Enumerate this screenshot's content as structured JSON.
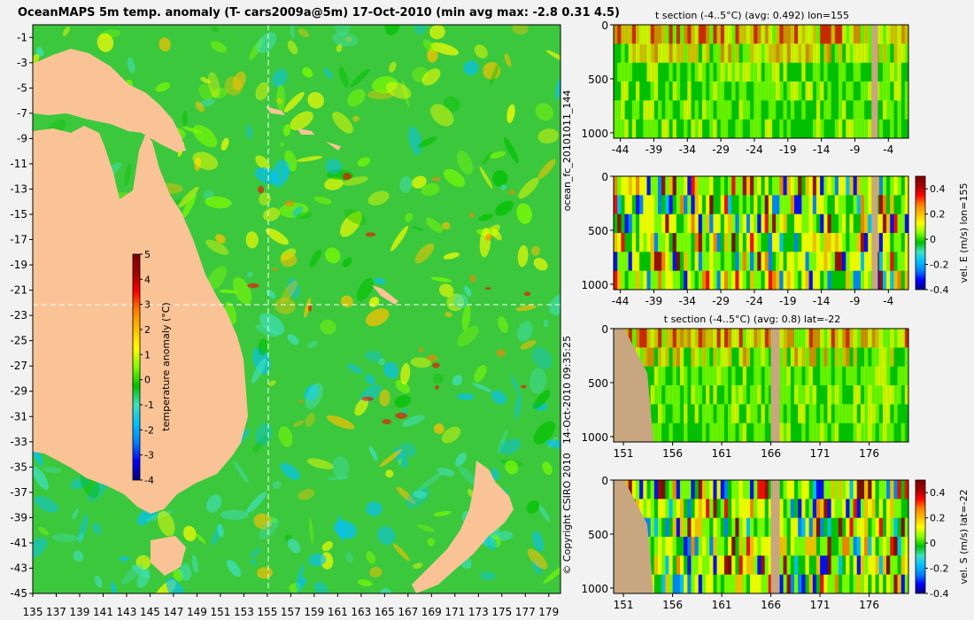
{
  "title": "OceanMAPS 5m temp. anomaly (T- cars2009a@5m) 17-Oct-2010 (min avg max: -2.8 0.31 4.5)",
  "side_text": {
    "forecast_id": "ocean_fc_20101011_144",
    "issued": "14-Oct-2010 09:35:25",
    "copyright": "© Copyright CSIRO 2010"
  },
  "colors": {
    "background": "#f2f2f2",
    "land": "#f9c396",
    "section_land": "#c7a680",
    "guide_line": "#ffffff",
    "colormap": [
      "#000080",
      "#0000ff",
      "#0080ff",
      "#00c0ff",
      "#40e0c0",
      "#00c000",
      "#80ff00",
      "#ffff00",
      "#ffc000",
      "#ff8000",
      "#ff0000",
      "#a00000",
      "#800000"
    ]
  },
  "chart_data": [
    {
      "type": "heatmap",
      "name": "map",
      "title": "OceanMAPS 5m temp. anomaly (T- cars2009a@5m) 17-Oct-2010 (min avg max: -2.8 0.31 4.5)",
      "x_ticks": [
        "135",
        "137",
        "139",
        "141",
        "143",
        "145",
        "147",
        "149",
        "151",
        "153",
        "155",
        "157",
        "159",
        "161",
        "163",
        "165",
        "167",
        "169",
        "171",
        "173",
        "175",
        "177",
        "179"
      ],
      "y_ticks": [
        "-1",
        "-3",
        "-5",
        "-7",
        "-9",
        "-11",
        "-13",
        "-15",
        "-17",
        "-19",
        "-21",
        "-23",
        "-25",
        "-27",
        "-29",
        "-31",
        "-33",
        "-35",
        "-37",
        "-39",
        "-41",
        "-43",
        "-45"
      ],
      "xlim": [
        135,
        180
      ],
      "ylim": [
        -45,
        0
      ],
      "grid": false,
      "colorbar": {
        "label": "temperature anomaly (°C)",
        "ticks": [
          "5",
          "4",
          "3",
          "2",
          "1",
          "0",
          "-1",
          "-2",
          "-3",
          "-4"
        ],
        "range": [
          -4,
          5
        ]
      },
      "guide_lines": {
        "lon": 155,
        "lat": -22
      },
      "stats": {
        "min": -2.8,
        "avg": 0.31,
        "max": 4.5
      }
    },
    {
      "type": "heatmap",
      "name": "t-section-lon155",
      "title": "t section (-4..5°C) (avg: 0.492) lon=155",
      "x_ticks": [
        "-44",
        "-39",
        "-34",
        "-29",
        "-24",
        "-19",
        "-14",
        "-9",
        "-4"
      ],
      "y_ticks": [
        "0",
        "500",
        "1000"
      ],
      "xlim": [
        -45,
        -1
      ],
      "ylim": [
        1050,
        0
      ]
    },
    {
      "type": "heatmap",
      "name": "vel-e-section",
      "title": "",
      "x_ticks": [
        "-44",
        "-39",
        "-34",
        "-29",
        "-24",
        "-19",
        "-14",
        "-9",
        "-4"
      ],
      "y_ticks": [
        "0",
        "500",
        "1000"
      ],
      "xlim": [
        -45,
        -1
      ],
      "ylim": [
        1050,
        0
      ],
      "colorbar": {
        "label": "vel. E (m/s) lon=155",
        "ticks": [
          "0.4",
          "0.2",
          "0",
          "-0.2",
          "-0.4"
        ],
        "range": [
          -0.4,
          0.5
        ]
      }
    },
    {
      "type": "heatmap",
      "name": "t-section-lat-22",
      "title": "t section (-4..5°C) (avg: 0.8) lat=-22",
      "x_ticks": [
        "151",
        "156",
        "161",
        "166",
        "171",
        "176"
      ],
      "y_ticks": [
        "0",
        "500",
        "1000"
      ],
      "xlim": [
        150,
        180
      ],
      "ylim": [
        1050,
        0
      ]
    },
    {
      "type": "heatmap",
      "name": "vel-s-section",
      "title": "",
      "x_ticks": [
        "151",
        "156",
        "161",
        "166",
        "171",
        "176"
      ],
      "y_ticks": [
        "0",
        "500",
        "1000"
      ],
      "xlim": [
        150,
        180
      ],
      "ylim": [
        1050,
        0
      ],
      "colorbar": {
        "label": "vel. S (m/s) lat=-22",
        "ticks": [
          "0.4",
          "0.2",
          "0",
          "-0.2",
          "-0.4"
        ],
        "range": [
          -0.4,
          0.5
        ]
      }
    }
  ]
}
